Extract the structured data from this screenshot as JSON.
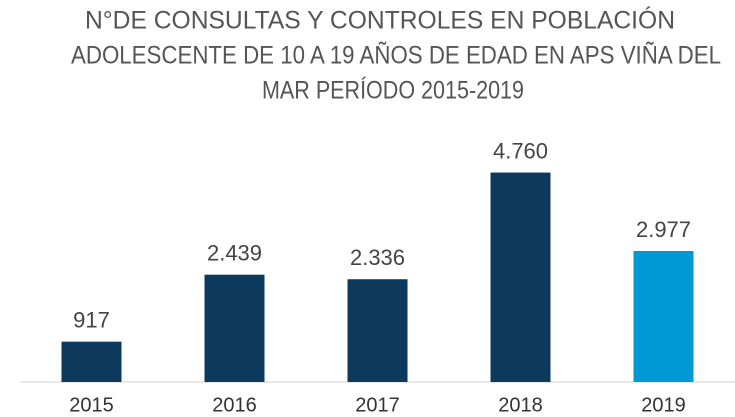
{
  "chart_data": {
    "type": "bar",
    "title": [
      "N°DE CONSULTAS Y CONTROLES EN POBLACIÓN",
      "ADOLESCENTE DE 10 A 19 AÑOS DE EDAD EN APS VIÑA DEL",
      "MAR PERÍODO 2015-2019"
    ],
    "categories": [
      "2015",
      "2016",
      "2017",
      "2018",
      "2019"
    ],
    "values": [
      917,
      2439,
      2336,
      4760,
      2977
    ],
    "value_labels": [
      "917",
      "2.439",
      "2.336",
      "4.760",
      "2.977"
    ],
    "colors": [
      "#0d3a5c",
      "#0d3a5c",
      "#0d3a5c",
      "#0d3a5c",
      "#0099d6"
    ],
    "ylim": [
      0,
      5500
    ]
  }
}
